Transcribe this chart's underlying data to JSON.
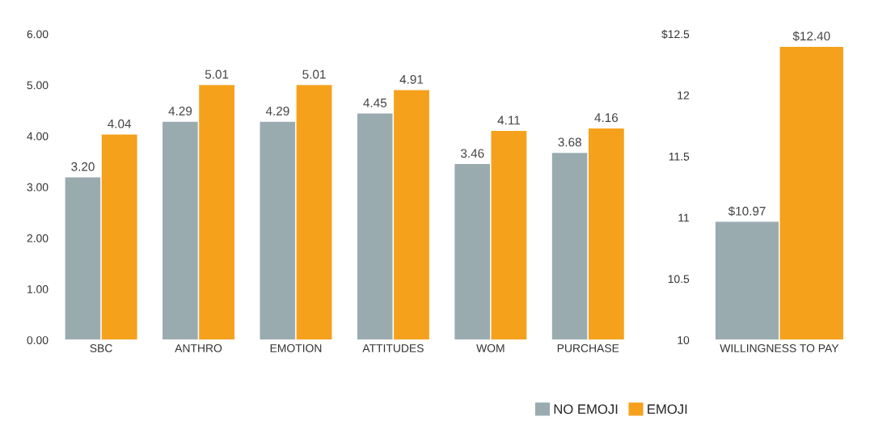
{
  "chart_data": [
    {
      "type": "bar",
      "categories": [
        "SBC",
        "ANTHRO",
        "EMOTION",
        "ATTITUDES",
        "WOM",
        "PURCHASE"
      ],
      "ylim": [
        0,
        6
      ],
      "yticks": [
        {
          "value": 0,
          "label": "0.00"
        },
        {
          "value": 1,
          "label": "1.00"
        },
        {
          "value": 2,
          "label": "2.00"
        },
        {
          "value": 3,
          "label": "3.00"
        },
        {
          "value": 4,
          "label": "4.00"
        },
        {
          "value": 5,
          "label": "5.00"
        },
        {
          "value": 6,
          "label": "6.00"
        }
      ],
      "grid": false,
      "legend": "bottom",
      "series": [
        {
          "name": "NO EMOJI",
          "color": "#9aabb0",
          "values": [
            3.2,
            4.29,
            4.29,
            4.45,
            3.46,
            3.68
          ],
          "value_labels": [
            "3.20",
            "4.29",
            "4.29",
            "4.45",
            "3.46",
            "3.68"
          ]
        },
        {
          "name": "EMOJI",
          "color": "#f5a11c",
          "values": [
            4.04,
            5.01,
            5.01,
            4.91,
            4.11,
            4.16
          ],
          "value_labels": [
            "4.04",
            "5.01",
            "5.01",
            "4.91",
            "4.11",
            "4.16"
          ]
        }
      ]
    },
    {
      "type": "bar",
      "categories": [
        "WILLINGNESS TO PAY"
      ],
      "ylim": [
        10,
        12.5
      ],
      "yticks": [
        10,
        10.5,
        11,
        11.5,
        12,
        {
          "value": 12.5,
          "label": "$12.5"
        }
      ],
      "grid": false,
      "series": [
        {
          "color": "#9aabb0",
          "values": [
            10.97
          ],
          "value_labels": [
            "$10.97"
          ]
        },
        {
          "color": "#f5a11c",
          "values": [
            12.4
          ],
          "value_labels": [
            "$12.40"
          ]
        }
      ]
    }
  ]
}
